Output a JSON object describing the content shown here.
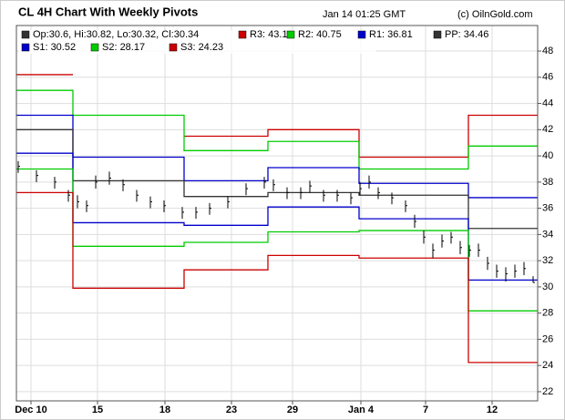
{
  "chart_data": {
    "type": "ohlc",
    "title": "CL 4H Chart With Weekly Pivots",
    "timestamp": "Jan 14 01:25 GMT",
    "credit": "(c) OilnGold.com",
    "ohlc_label": "Op:30.6, Hi:30.82, Lo:30.32, Cl:30.34",
    "ohlc_color": "#333333",
    "xlim": [
      0,
      143
    ],
    "xticks": [
      {
        "value": 4,
        "label": "Dec 10"
      },
      {
        "value": 22.25,
        "label": "15"
      },
      {
        "value": 40.75,
        "label": "18"
      },
      {
        "value": 59,
        "label": "23"
      },
      {
        "value": 75.75,
        "label": "29"
      },
      {
        "value": 94.5,
        "label": "Jan 4"
      },
      {
        "value": 112.25,
        "label": "7"
      },
      {
        "value": 130.5,
        "label": "12"
      }
    ],
    "ylim": [
      21.3,
      49.95
    ],
    "yticks": [
      22,
      24,
      26,
      28,
      30,
      32,
      34,
      36,
      38,
      40,
      42,
      44,
      46,
      48
    ],
    "grid": true,
    "price": {
      "color": "#000000",
      "x": [
        0.5,
        5.5,
        10.5,
        14.25,
        16.75,
        19.25,
        21.75,
        25.5,
        29.25,
        33,
        36.75,
        40.5,
        45.5,
        49.25,
        53,
        58,
        63,
        68,
        70.5,
        74.25,
        78,
        80.5,
        84.25,
        88,
        91.75,
        94.25,
        96.75,
        99.25,
        103,
        106.75,
        109.25,
        111.75,
        114.25,
        116.75,
        119.25,
        121.75,
        124.25,
        126.75,
        129.25,
        131.75,
        134.25,
        136.75,
        139.25,
        141.75
      ],
      "high": [
        39.6,
        38.9,
        38.4,
        37.4,
        37.0,
        36.6,
        38.5,
        38.8,
        38.2,
        37.4,
        36.9,
        36.6,
        36.1,
        36.1,
        36.4,
        36.9,
        37.9,
        38.4,
        38.2,
        37.6,
        37.6,
        38.1,
        37.4,
        37.4,
        37.2,
        38.0,
        38.5,
        37.6,
        37.2,
        36.6,
        35.5,
        34.3,
        33.3,
        34.0,
        34.2,
        33.5,
        33.2,
        33.3,
        32.3,
        31.7,
        31.5,
        31.7,
        31.9,
        30.82
      ],
      "low": [
        38.7,
        38.0,
        37.5,
        36.5,
        36.0,
        35.7,
        37.5,
        37.8,
        37.3,
        36.5,
        36.0,
        35.7,
        35.2,
        35.2,
        35.5,
        36.0,
        37.0,
        37.5,
        37.3,
        36.7,
        36.7,
        37.2,
        36.5,
        36.5,
        36.3,
        37.0,
        37.5,
        36.7,
        36.3,
        35.7,
        34.5,
        33.3,
        32.2,
        33.0,
        33.3,
        32.5,
        32.3,
        32.3,
        31.3,
        30.7,
        30.4,
        30.7,
        30.9,
        30.32
      ],
      "close": [
        39.2,
        38.5,
        38.0,
        37.0,
        36.5,
        36.2,
        38.0,
        38.3,
        37.8,
        37.0,
        36.5,
        36.2,
        35.7,
        35.7,
        36.0,
        36.5,
        37.5,
        38.0,
        37.8,
        37.2,
        37.2,
        37.7,
        37.0,
        37.0,
        36.8,
        37.5,
        38.0,
        37.2,
        36.8,
        36.2,
        35.0,
        33.8,
        32.8,
        33.5,
        33.8,
        33.0,
        32.8,
        32.8,
        31.8,
        31.2,
        31.0,
        31.2,
        31.4,
        30.34
      ]
    },
    "pivot_x": [
      0,
      15.5,
      15.5,
      46,
      46,
      69,
      69,
      94,
      94,
      124,
      124,
      143
    ],
    "series": [
      {
        "name": "R3: 43.1",
        "color": "#cc0000",
        "values": [
          46.2,
          46.2,
          null,
          null,
          41.5,
          41.5,
          42.0,
          42.0,
          39.9,
          39.9,
          43.1,
          43.1
        ]
      },
      {
        "name": "R2: 40.75",
        "color": "#00cc00",
        "values": [
          45.0,
          45.0,
          43.1,
          43.1,
          40.4,
          40.4,
          41.1,
          41.1,
          39.0,
          39.0,
          40.75,
          40.75
        ]
      },
      {
        "name": "R1: 36.81",
        "color": "#0000cc",
        "values": [
          43.1,
          43.1,
          39.9,
          39.9,
          38.1,
          38.1,
          39.1,
          39.1,
          37.9,
          37.9,
          36.81,
          36.81
        ]
      },
      {
        "name": "PP: 34.46",
        "color": "#333333",
        "values": [
          42.0,
          42.0,
          38.1,
          38.1,
          36.9,
          36.9,
          37.2,
          37.2,
          37.0,
          37.0,
          34.46,
          34.46
        ]
      },
      {
        "name": "S1: 30.52",
        "color": "#0000cc",
        "values": [
          40.2,
          40.2,
          34.9,
          34.9,
          34.7,
          34.7,
          36.1,
          36.1,
          35.2,
          35.2,
          30.52,
          30.52
        ]
      },
      {
        "name": "S2: 28.17",
        "color": "#00cc00",
        "values": [
          39.0,
          39.0,
          33.1,
          33.1,
          33.4,
          33.4,
          34.2,
          34.2,
          34.3,
          34.3,
          28.17,
          28.17
        ]
      },
      {
        "name": "S3: 24.23",
        "color": "#cc0000",
        "values": [
          37.2,
          37.2,
          29.9,
          29.9,
          31.3,
          31.3,
          32.4,
          32.4,
          32.2,
          32.2,
          24.23,
          24.23
        ]
      }
    ]
  }
}
